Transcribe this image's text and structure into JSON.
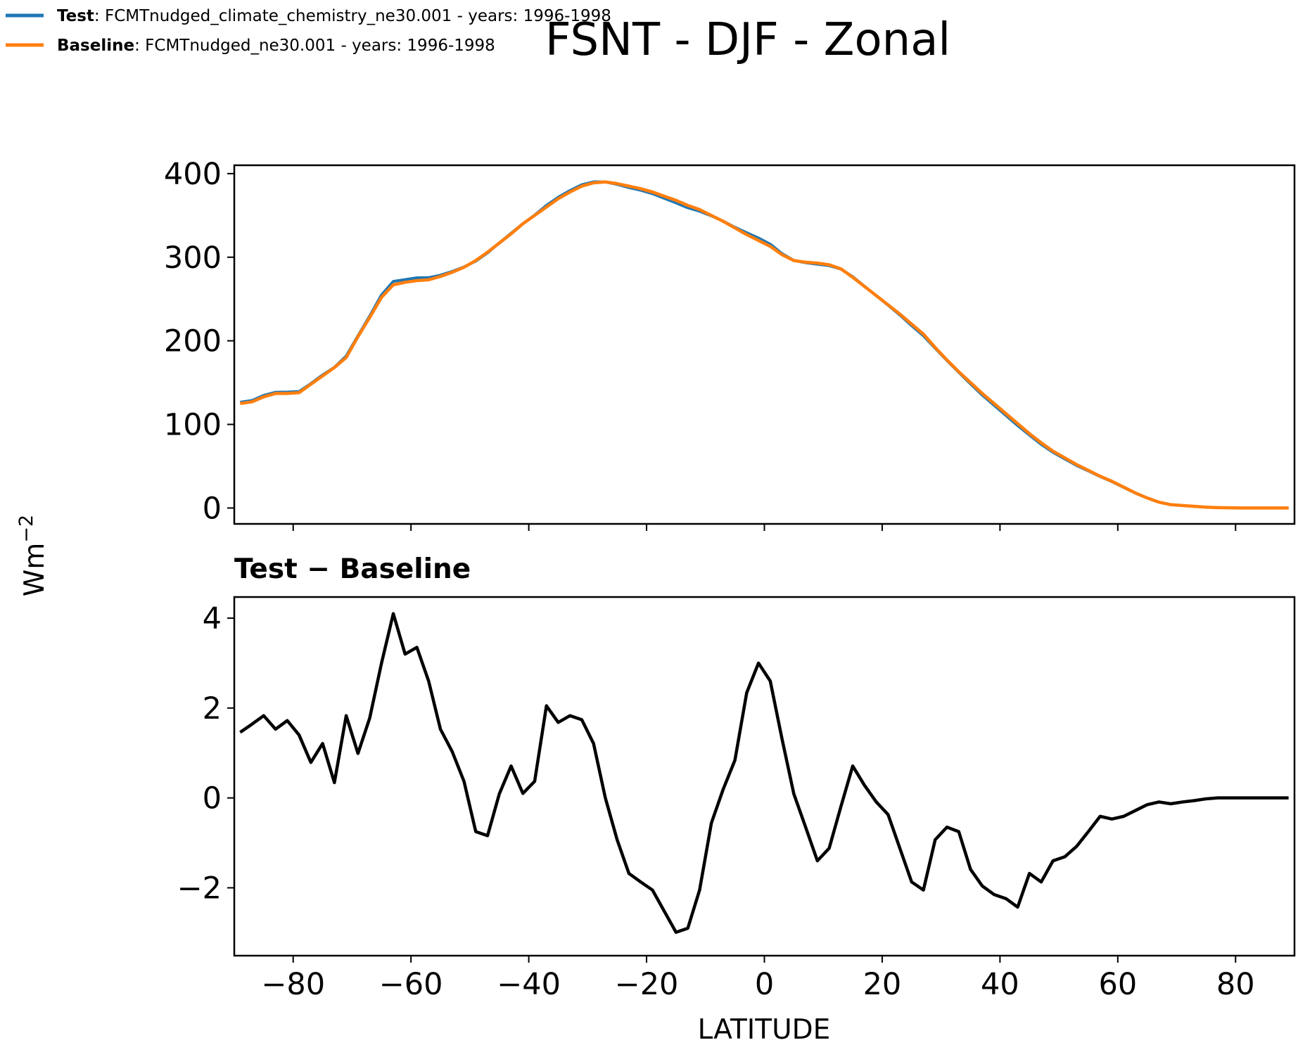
{
  "chart_data": [
    {
      "type": "line",
      "title": "FSNT - DJF - Zonal",
      "ylabel": "Wm",
      "ylabel_exponent": "−2",
      "xlim": [
        -90,
        90
      ],
      "ylim": [
        -19,
        410
      ],
      "xticks": [
        -80,
        -60,
        -40,
        -20,
        0,
        20,
        40,
        60,
        80
      ],
      "yticks": [
        0,
        100,
        200,
        300,
        400
      ],
      "x": [
        -89,
        -87,
        -85,
        -83,
        -81,
        -79,
        -77,
        -75,
        -73,
        -71,
        -69,
        -67,
        -65,
        -63,
        -61,
        -59,
        -57,
        -55,
        -53,
        -51,
        -49,
        -47,
        -45,
        -43,
        -41,
        -39,
        -37,
        -35,
        -33,
        -31,
        -29,
        -27,
        -25,
        -23,
        -21,
        -19,
        -17,
        -15,
        -13,
        -11,
        -9,
        -7,
        -5,
        -3,
        -1,
        1,
        3,
        5,
        7,
        9,
        11,
        13,
        15,
        17,
        19,
        21,
        23,
        25,
        27,
        29,
        31,
        33,
        35,
        37,
        39,
        41,
        43,
        45,
        47,
        49,
        51,
        53,
        55,
        57,
        59,
        61,
        63,
        65,
        67,
        69,
        71,
        73,
        75,
        77,
        79,
        81,
        83,
        85,
        87,
        89
      ],
      "series": [
        {
          "name": "Test",
          "description": ": FCMTnudged_climate_chemistry_ne30.001 - years: 1996-1998",
          "color": "#1f77b4",
          "values": [
            126.5,
            128.6,
            134.8,
            138.5,
            138.7,
            139.4,
            148.8,
            159.2,
            168.3,
            181.8,
            206,
            229.8,
            255,
            271.1,
            273.2,
            275.4,
            275.6,
            278.5,
            283,
            288.4,
            295.3,
            305.2,
            317.1,
            328.7,
            340.1,
            350.4,
            362,
            371.7,
            379.8,
            386.7,
            390.2,
            390,
            387.1,
            383.3,
            380.1,
            376,
            370.5,
            365,
            359.1,
            355,
            349.4,
            343.2,
            335.8,
            329.3,
            323,
            315.6,
            304.3,
            296.1,
            293.4,
            291.6,
            289.9,
            285.8,
            276.7,
            265.3,
            253.9,
            242.6,
            230.9,
            218.1,
            206,
            191.1,
            176.4,
            162.3,
            148.4,
            135,
            122.9,
            110.8,
            98.6,
            87.3,
            76.1,
            66.6,
            58.7,
            50.9,
            44.3,
            37.6,
            31.5,
            24.6,
            17.7,
            11.9,
            6.9,
            3.9,
            2.9,
            1.9,
            1,
            0.5,
            0.2,
            0,
            0,
            0,
            0,
            0
          ]
        },
        {
          "name": "Baseline",
          "description": ": FCMTnudged_ne30.001 - years: 1996-1998",
          "color": "#ff7f0e",
          "values": [
            125,
            127,
            133,
            137,
            137,
            138,
            148,
            158,
            168,
            180,
            205,
            228,
            252,
            267,
            270,
            272,
            273,
            277,
            282,
            288,
            296,
            306,
            317,
            328,
            340,
            350,
            360,
            370,
            378,
            385,
            389,
            390,
            388,
            385,
            382,
            378,
            373,
            368,
            362,
            357,
            350,
            343,
            335,
            327,
            320,
            313,
            303,
            296,
            294,
            293,
            291,
            286,
            276,
            265,
            254,
            243,
            232,
            220,
            208,
            192,
            177,
            163,
            150,
            137,
            125,
            113,
            101,
            89,
            78,
            68,
            60,
            52,
            45,
            38,
            32,
            25,
            18,
            12,
            7,
            4,
            3,
            2,
            1,
            0.5,
            0.2,
            0,
            0,
            0,
            0,
            0
          ]
        }
      ]
    },
    {
      "type": "line",
      "title": "Test − Baseline",
      "xlabel": "LATITUDE",
      "xlim": [
        -90,
        90
      ],
      "ylim": [
        -3.51,
        4.47
      ],
      "xticks": [
        {
          "value": -80,
          "label": "−80"
        },
        {
          "value": -60,
          "label": "−60"
        },
        {
          "value": -40,
          "label": "−40"
        },
        {
          "value": -20,
          "label": "−20"
        },
        0,
        20,
        40,
        60,
        80
      ],
      "yticks": [
        {
          "value": -2,
          "label": "−2"
        },
        0,
        2,
        4
      ],
      "x": [
        -89,
        -87,
        -85,
        -83,
        -81,
        -79,
        -77,
        -75,
        -73,
        -71,
        -69,
        -67,
        -65,
        -63,
        -61,
        -59,
        -57,
        -55,
        -53,
        -51,
        -49,
        -47,
        -45,
        -43,
        -41,
        -39,
        -37,
        -35,
        -33,
        -31,
        -29,
        -27,
        -25,
        -23,
        -21,
        -19,
        -17,
        -15,
        -13,
        -11,
        -9,
        -7,
        -5,
        -3,
        -1,
        1,
        3,
        5,
        7,
        9,
        11,
        13,
        15,
        17,
        19,
        21,
        23,
        25,
        27,
        29,
        31,
        33,
        35,
        37,
        39,
        41,
        43,
        45,
        47,
        49,
        51,
        53,
        55,
        57,
        59,
        61,
        63,
        65,
        67,
        69,
        71,
        73,
        75,
        77,
        79,
        81,
        83,
        85,
        87,
        89
      ],
      "series": [
        {
          "color": "#000000",
          "values": [
            1.46,
            1.64,
            1.83,
            1.53,
            1.72,
            1.4,
            0.79,
            1.21,
            0.34,
            1.83,
            0.99,
            1.78,
            3.0,
            4.1,
            3.2,
            3.35,
            2.6,
            1.53,
            1.03,
            0.37,
            -0.75,
            -0.84,
            0.09,
            0.71,
            0.1,
            0.37,
            2.05,
            1.68,
            1.83,
            1.74,
            1.21,
            0,
            -0.93,
            -1.68,
            -1.87,
            -2.05,
            -2.52,
            -2.99,
            -2.9,
            -2.05,
            -0.56,
            0.19,
            0.84,
            2.34,
            3.0,
            2.6,
            1.31,
            0.09,
            -0.65,
            -1.4,
            -1.12,
            -0.19,
            0.71,
            0.28,
            -0.09,
            -0.37,
            -1.12,
            -1.87,
            -2.05,
            -0.93,
            -0.65,
            -0.75,
            -1.59,
            -1.96,
            -2.15,
            -2.24,
            -2.43,
            -1.68,
            -1.87,
            -1.4,
            -1.31,
            -1.08,
            -0.75,
            -0.41,
            -0.47,
            -0.41,
            -0.28,
            -0.15,
            -0.09,
            -0.13,
            -0.09,
            -0.06,
            -0.02,
            0,
            0,
            0,
            0,
            0,
            0,
            0
          ]
        }
      ]
    }
  ]
}
